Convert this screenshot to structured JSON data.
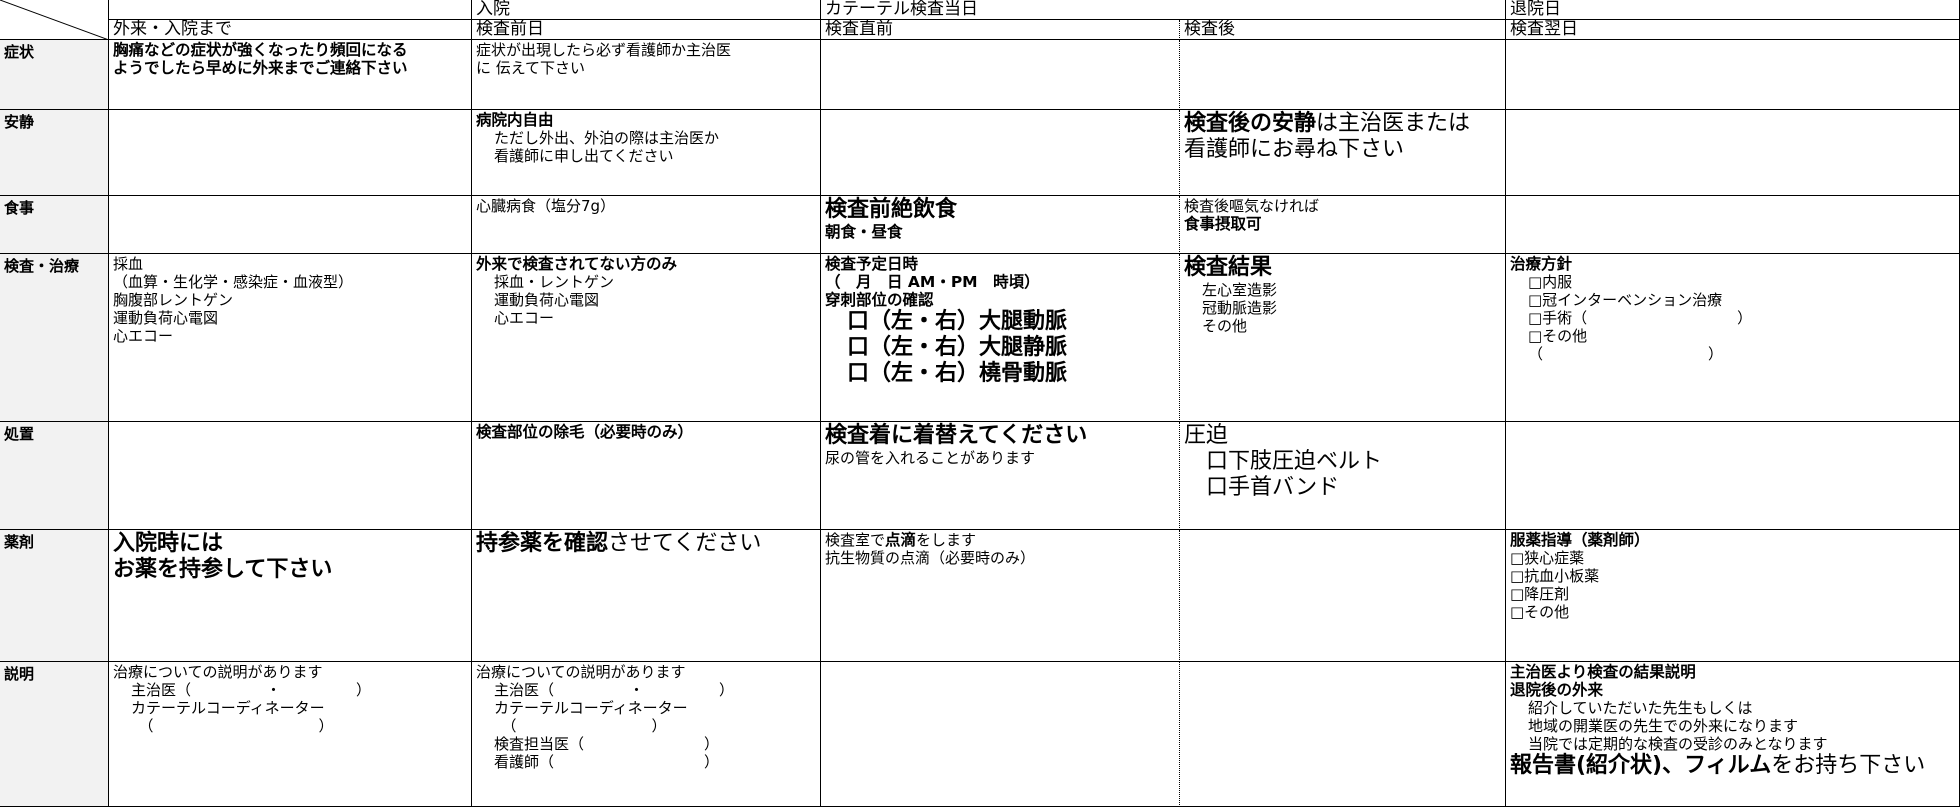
{
  "header": {
    "groups": [
      null,
      null,
      "入院",
      "カテーテル検査当日",
      null,
      "退院日"
    ],
    "columns": [
      null,
      "外来・入院まで",
      "検査前日",
      "検査直前",
      "検査後",
      "検査翌日"
    ]
  },
  "rows": [
    {
      "label": "症状",
      "cells": [
        [
          {
            "b": "胸痛などの症状が強くなったり頻回になる"
          },
          {
            "b": "ようでしたら早めに外来までご連絡下さい"
          }
        ],
        [
          "症状が出現したら必ず看護師か主治医",
          "に 伝えて下さい"
        ],
        [],
        [],
        []
      ]
    },
    {
      "label": "安静",
      "cells": [
        [],
        [
          {
            "b": "病院内自由"
          },
          {
            "i": "ただし外出、外泊の際は主治医か"
          },
          {
            "i": "看護師に申し出てください"
          }
        ],
        [],
        [
          [
            {
              "B": "検査後の安静"
            },
            {
              "l": "は主治医または"
            }
          ],
          {
            "l": "看護師にお尋ね下さい"
          }
        ],
        []
      ]
    },
    {
      "label": "食事",
      "cells": [
        [],
        [
          "心臓病食（塩分7g）"
        ],
        [
          {
            "B": "検査前絶飲食"
          },
          {
            "b": "朝食・昼食"
          }
        ],
        [
          "検査後嘔気なければ",
          {
            "b": "食事摂取可"
          }
        ],
        []
      ]
    },
    {
      "label": "検査・治療",
      "cells": [
        [
          "採血",
          "（血算・生化学・感染症・血液型）",
          "胸腹部レントゲン",
          "運動負荷心電図",
          "心エコー"
        ],
        [
          {
            "b": "外来で検査されてない方のみ"
          },
          {
            "i": "採血・レントゲン"
          },
          {
            "i": "運動負荷心電図"
          },
          {
            "i": "心エコー"
          }
        ],
        [
          {
            "b": "検査予定日時"
          },
          {
            "b": "（　月　日 AM・PM　時頃）"
          },
          {
            "b": "穿刺部位の確認"
          },
          {
            "B": "　口（左・右）大腿動脈"
          },
          {
            "B": "　口（左・右）大腿静脈"
          },
          {
            "B": "　口（左・右）橈骨動脈"
          }
        ],
        [
          {
            "B": "検査結果"
          },
          {
            "i": "左心室造影"
          },
          {
            "i": "冠動脈造影"
          },
          {
            "i": "その他"
          }
        ],
        [
          {
            "b": "治療方針"
          },
          {
            "i": "□内服"
          },
          {
            "i": "□冠インターベンション治療"
          },
          {
            "i": "□手術（　　　　　　　　　　）"
          },
          {
            "i": "□その他"
          },
          {
            "i": "（　　　　　　　　　　　）"
          }
        ]
      ]
    },
    {
      "label": "処置",
      "cells": [
        [],
        [
          {
            "b": "検査部位の除毛（必要時のみ）"
          }
        ],
        [
          {
            "B": "検査着に着替えてください"
          },
          "尿の管を入れることがあります"
        ],
        [
          {
            "l": "圧迫"
          },
          {
            "l": "　口下肢圧迫ベルト"
          },
          {
            "l": "　口手首バンド"
          }
        ],
        []
      ]
    },
    {
      "label": "薬剤",
      "cells": [
        [
          {
            "B": "入院時には"
          },
          {
            "B": "お薬を持参して下さい"
          }
        ],
        [
          [
            {
              "B": "持参薬を確認"
            },
            {
              "l": "させてください"
            }
          ]
        ],
        [
          [
            "検査室で",
            {
              "b": "点滴"
            },
            "をします"
          ],
          "抗生物質の点滴（必要時のみ）"
        ],
        [],
        [
          {
            "b": "服薬指導（薬剤師）"
          },
          "□狭心症薬",
          "□抗血小板薬",
          "□降圧剤",
          "□その他"
        ]
      ]
    },
    {
      "label": "説明",
      "cells": [
        [
          "治療についての説明があります",
          {
            "i": "主治医（　　　　　・　　　　　）"
          },
          {
            "i": "カテーテルコーディネーター"
          },
          {
            "i": "　（　　　　　　　　　　　）"
          }
        ],
        [
          "治療についての説明があります",
          {
            "i": "主治医（　　　　　・　　　　　）"
          },
          {
            "i": "カテーテルコーディネーター"
          },
          {
            "i": "　（　　　　　　　　　）"
          },
          {
            "i": "検査担当医（　　　　　　　　）"
          },
          {
            "i": "看護師（　　　　　　　　　　）"
          }
        ],
        [],
        [],
        [
          {
            "b": "主治医より検査の結果説明"
          },
          {
            "b": "退院後の外来"
          },
          {
            "i": "紹介していただいた先生もしくは"
          },
          {
            "i": "地域の開業医の先生での外来になります"
          },
          {
            "i": "当院では定期的な検査の受診のみとなります"
          },
          [
            {
              "B": "報告書(紹介状)、フィルム"
            },
            {
              "l": "をお持ち下さい"
            }
          ]
        ]
      ]
    }
  ]
}
